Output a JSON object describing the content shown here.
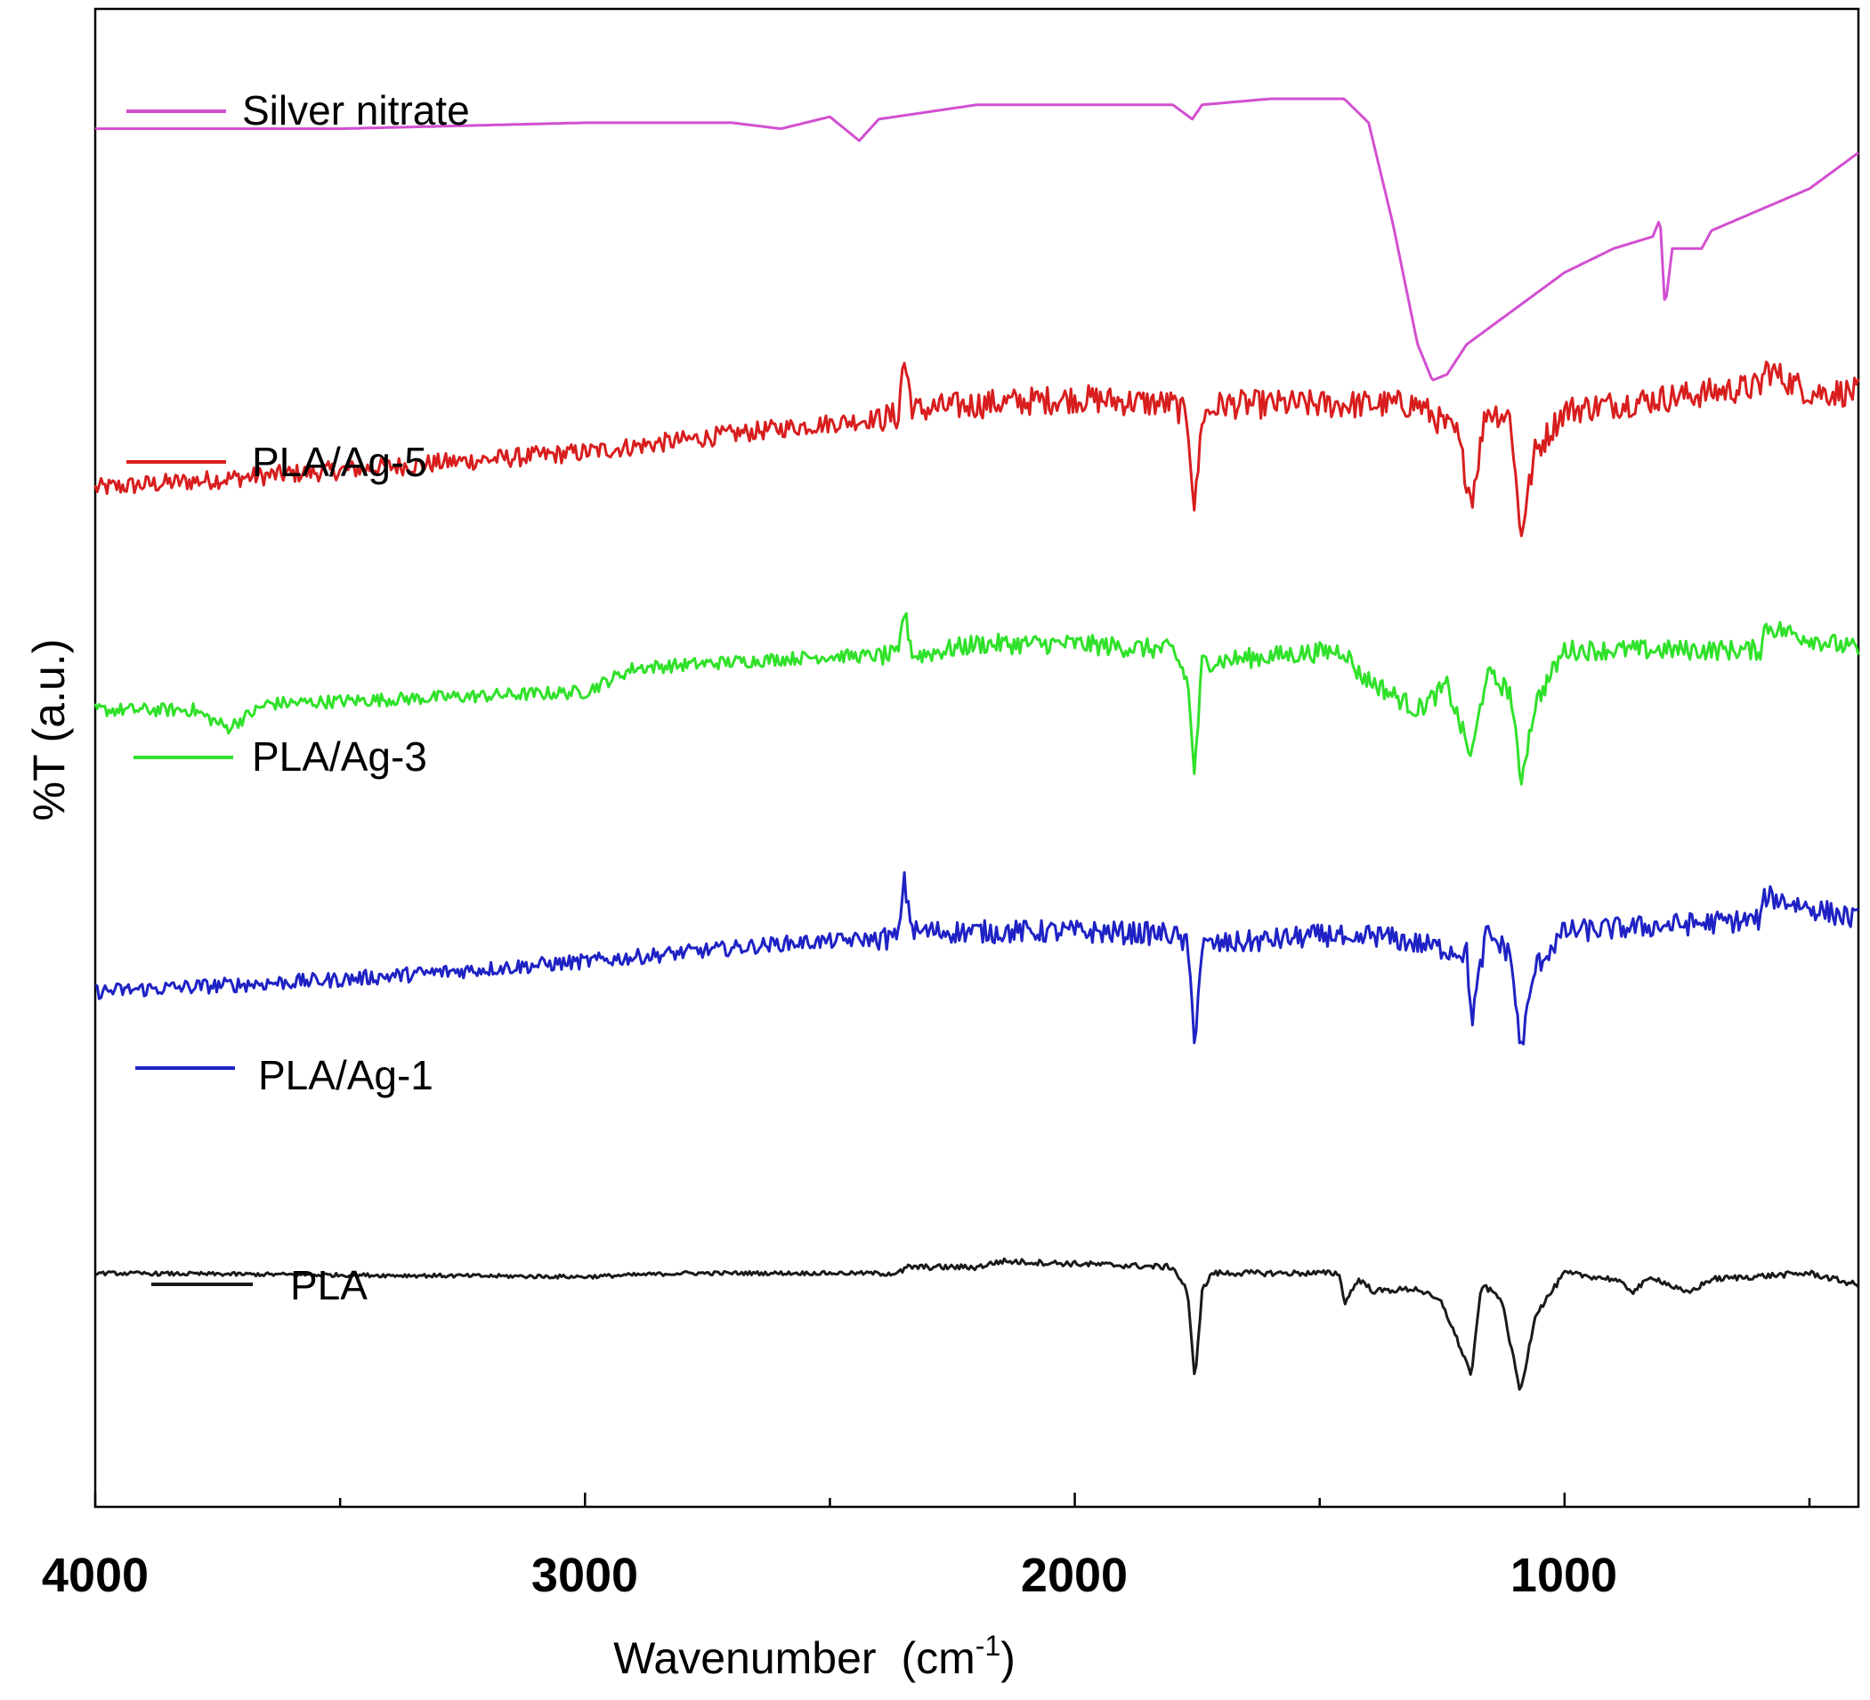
{
  "chart_data": {
    "type": "line",
    "title": "",
    "xlabel": "Wavenumber",
    "xlabel_unit": "cm",
    "xlabel_unit_exp": "-1",
    "xlabel_close": ")",
    "xlabel_open": "(",
    "ylabel": "%T (a.u.)",
    "xlim": [
      4000,
      400
    ],
    "x_reversed": true,
    "yaxis_ticks": false,
    "major_ticks": [
      4000,
      3000,
      2000,
      1000
    ],
    "minor_ticks": [
      3500,
      2500,
      1500,
      500
    ],
    "tick_labels": [
      "4000",
      "3000",
      "2000",
      "1000"
    ],
    "legend_placement": "inline-above-each-trace",
    "series": [
      {
        "name": "Silver nitrate",
        "color": "#d24fd0",
        "points": [
          [
            4000,
            0.8
          ],
          [
            3500,
            0.8
          ],
          [
            3000,
            0.805
          ],
          [
            2700,
            0.805
          ],
          [
            2600,
            0.8
          ],
          [
            2500,
            0.81
          ],
          [
            2440,
            0.79
          ],
          [
            2400,
            0.808
          ],
          [
            2200,
            0.82
          ],
          [
            1800,
            0.82
          ],
          [
            1760,
            0.808
          ],
          [
            1740,
            0.82
          ],
          [
            1600,
            0.825
          ],
          [
            1450,
            0.825
          ],
          [
            1400,
            0.805
          ],
          [
            1350,
            0.72
          ],
          [
            1300,
            0.62
          ],
          [
            1270,
            0.59
          ],
          [
            1240,
            0.595
          ],
          [
            1200,
            0.62
          ],
          [
            1100,
            0.65
          ],
          [
            1000,
            0.68
          ],
          [
            900,
            0.7
          ],
          [
            820,
            0.71
          ],
          [
            805,
            0.725
          ],
          [
            795,
            0.65
          ],
          [
            780,
            0.7
          ],
          [
            720,
            0.7
          ],
          [
            700,
            0.715
          ],
          [
            500,
            0.75
          ],
          [
            400,
            0.78
          ]
        ]
      },
      {
        "name": "PLA/Ag-5",
        "color": "#d81e1e",
        "noise": 0.01,
        "points": [
          [
            4000,
            0.5
          ],
          [
            3500,
            0.515
          ],
          [
            3000,
            0.53
          ],
          [
            2600,
            0.55
          ],
          [
            2360,
            0.56
          ],
          [
            2350,
            0.61
          ],
          [
            2330,
            0.565
          ],
          [
            2200,
            0.57
          ],
          [
            2000,
            0.575
          ],
          [
            1800,
            0.57
          ],
          [
            1770,
            0.56
          ],
          [
            1755,
            0.48
          ],
          [
            1740,
            0.56
          ],
          [
            1700,
            0.57
          ],
          [
            1300,
            0.57
          ],
          [
            1220,
            0.545
          ],
          [
            1190,
            0.49
          ],
          [
            1160,
            0.565
          ],
          [
            1110,
            0.56
          ],
          [
            1090,
            0.46
          ],
          [
            1060,
            0.53
          ],
          [
            1000,
            0.565
          ],
          [
            800,
            0.575
          ],
          [
            600,
            0.585
          ],
          [
            590,
            0.6
          ],
          [
            500,
            0.58
          ],
          [
            400,
            0.58
          ]
        ]
      },
      {
        "name": "PLA/Ag-3",
        "color": "#30e12a",
        "noise": 0.007,
        "points": [
          [
            4000,
            0.315
          ],
          [
            3800,
            0.315
          ],
          [
            3730,
            0.3
          ],
          [
            3650,
            0.32
          ],
          [
            3000,
            0.33
          ],
          [
            2900,
            0.35
          ],
          [
            2500,
            0.36
          ],
          [
            2360,
            0.36
          ],
          [
            2350,
            0.4
          ],
          [
            2330,
            0.36
          ],
          [
            2200,
            0.37
          ],
          [
            2000,
            0.37
          ],
          [
            1800,
            0.365
          ],
          [
            1770,
            0.34
          ],
          [
            1755,
            0.26
          ],
          [
            1740,
            0.355
          ],
          [
            1450,
            0.365
          ],
          [
            1420,
            0.345
          ],
          [
            1300,
            0.315
          ],
          [
            1240,
            0.335
          ],
          [
            1190,
            0.275
          ],
          [
            1160,
            0.345
          ],
          [
            1110,
            0.33
          ],
          [
            1090,
            0.255
          ],
          [
            1060,
            0.32
          ],
          [
            1000,
            0.365
          ],
          [
            600,
            0.365
          ],
          [
            590,
            0.385
          ],
          [
            500,
            0.375
          ],
          [
            400,
            0.365
          ]
        ]
      },
      {
        "name": "PLA/Ag-1",
        "color": "#1f22c4",
        "noise": 0.008,
        "points": [
          [
            4000,
            0.08
          ],
          [
            3500,
            0.09
          ],
          [
            3000,
            0.105
          ],
          [
            2600,
            0.12
          ],
          [
            2360,
            0.125
          ],
          [
            2350,
            0.175
          ],
          [
            2330,
            0.13
          ],
          [
            2200,
            0.13
          ],
          [
            2000,
            0.13
          ],
          [
            1800,
            0.128
          ],
          [
            1770,
            0.118
          ],
          [
            1755,
            0.04
          ],
          [
            1740,
            0.118
          ],
          [
            1460,
            0.128
          ],
          [
            1440,
            0.115
          ],
          [
            1400,
            0.128
          ],
          [
            1200,
            0.112
          ],
          [
            1190,
            0.055
          ],
          [
            1160,
            0.128
          ],
          [
            1110,
            0.112
          ],
          [
            1090,
            0.03
          ],
          [
            1060,
            0.1
          ],
          [
            1000,
            0.13
          ],
          [
            800,
            0.135
          ],
          [
            600,
            0.14
          ],
          [
            590,
            0.16
          ],
          [
            500,
            0.15
          ],
          [
            400,
            0.14
          ]
        ]
      },
      {
        "name": "PLA",
        "color": "#1a1a1a",
        "noise": 0.002,
        "points": [
          [
            4000,
            -0.155
          ],
          [
            3000,
            -0.158
          ],
          [
            2800,
            -0.155
          ],
          [
            2360,
            -0.155
          ],
          [
            2340,
            -0.15
          ],
          [
            2200,
            -0.15
          ],
          [
            2150,
            -0.145
          ],
          [
            1800,
            -0.15
          ],
          [
            1770,
            -0.17
          ],
          [
            1755,
            -0.245
          ],
          [
            1740,
            -0.17
          ],
          [
            1720,
            -0.155
          ],
          [
            1460,
            -0.155
          ],
          [
            1450,
            -0.18
          ],
          [
            1420,
            -0.16
          ],
          [
            1390,
            -0.17
          ],
          [
            1300,
            -0.168
          ],
          [
            1250,
            -0.18
          ],
          [
            1190,
            -0.24
          ],
          [
            1170,
            -0.165
          ],
          [
            1130,
            -0.175
          ],
          [
            1090,
            -0.255
          ],
          [
            1060,
            -0.19
          ],
          [
            1000,
            -0.155
          ],
          [
            900,
            -0.16
          ],
          [
            860,
            -0.17
          ],
          [
            820,
            -0.158
          ],
          [
            750,
            -0.172
          ],
          [
            700,
            -0.16
          ],
          [
            500,
            -0.155
          ],
          [
            400,
            -0.165
          ]
        ]
      }
    ]
  }
}
